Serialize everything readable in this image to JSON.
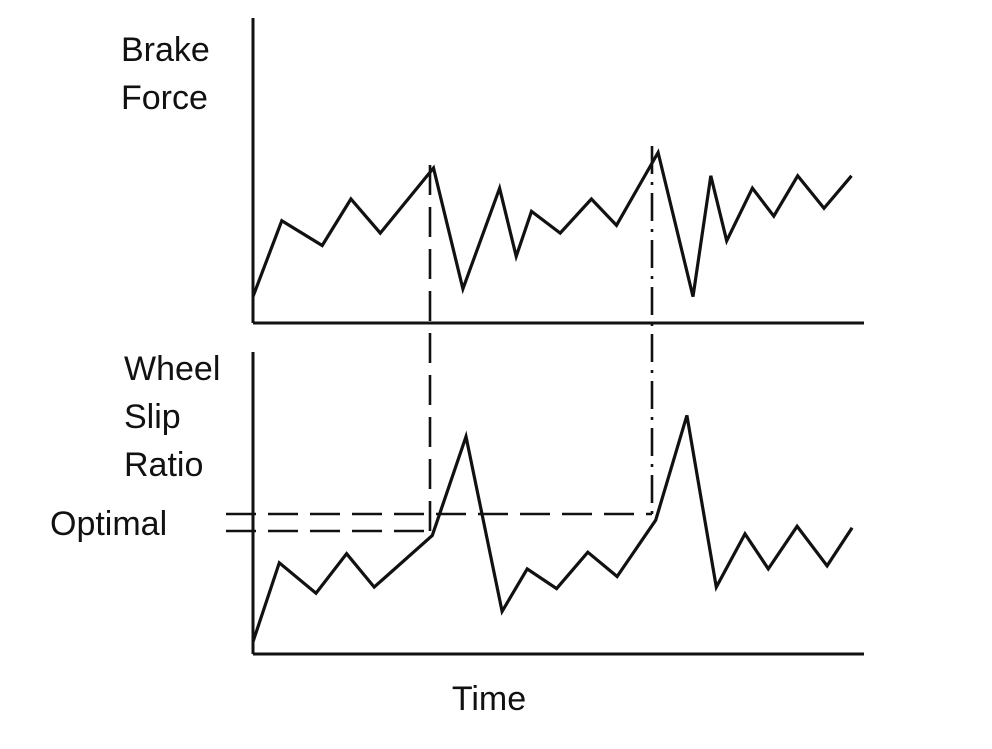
{
  "chart_data": {
    "type": "line",
    "panels": [
      {
        "ylabel_lines": [
          "Brake",
          "Force"
        ],
        "x": [
          0.0,
          4.7,
          11.3,
          16.0,
          20.8,
          29.5,
          34.3,
          40.3,
          43.0,
          45.5,
          50.2,
          55.3,
          59.4,
          66.2,
          71.9,
          74.8,
          77.4,
          81.6,
          85.1,
          89.0,
          93.3,
          97.8
        ],
        "y": [
          0.17,
          0.66,
          0.5,
          0.8,
          0.58,
          1.0,
          0.22,
          0.87,
          0.43,
          0.72,
          0.58,
          0.8,
          0.63,
          1.1,
          0.17,
          0.95,
          0.53,
          0.87,
          0.69,
          0.95,
          0.74,
          0.95
        ]
      },
      {
        "ylabel_lines": [
          "Wheel",
          "Slip",
          "Ratio"
        ],
        "reference_label": "Optimal",
        "x": [
          0.0,
          4.3,
          10.3,
          15.3,
          19.8,
          29.3,
          34.8,
          40.7,
          44.8,
          49.6,
          54.7,
          59.5,
          65.8,
          70.9,
          75.7,
          80.4,
          84.2,
          88.9,
          93.8,
          97.9
        ],
        "y": [
          0.08,
          0.6,
          0.4,
          0.66,
          0.44,
          0.78,
          1.43,
          0.28,
          0.56,
          0.43,
          0.67,
          0.51,
          0.88,
          1.57,
          0.44,
          0.79,
          0.56,
          0.84,
          0.58,
          0.83
        ]
      }
    ],
    "xlabel": "Time"
  }
}
